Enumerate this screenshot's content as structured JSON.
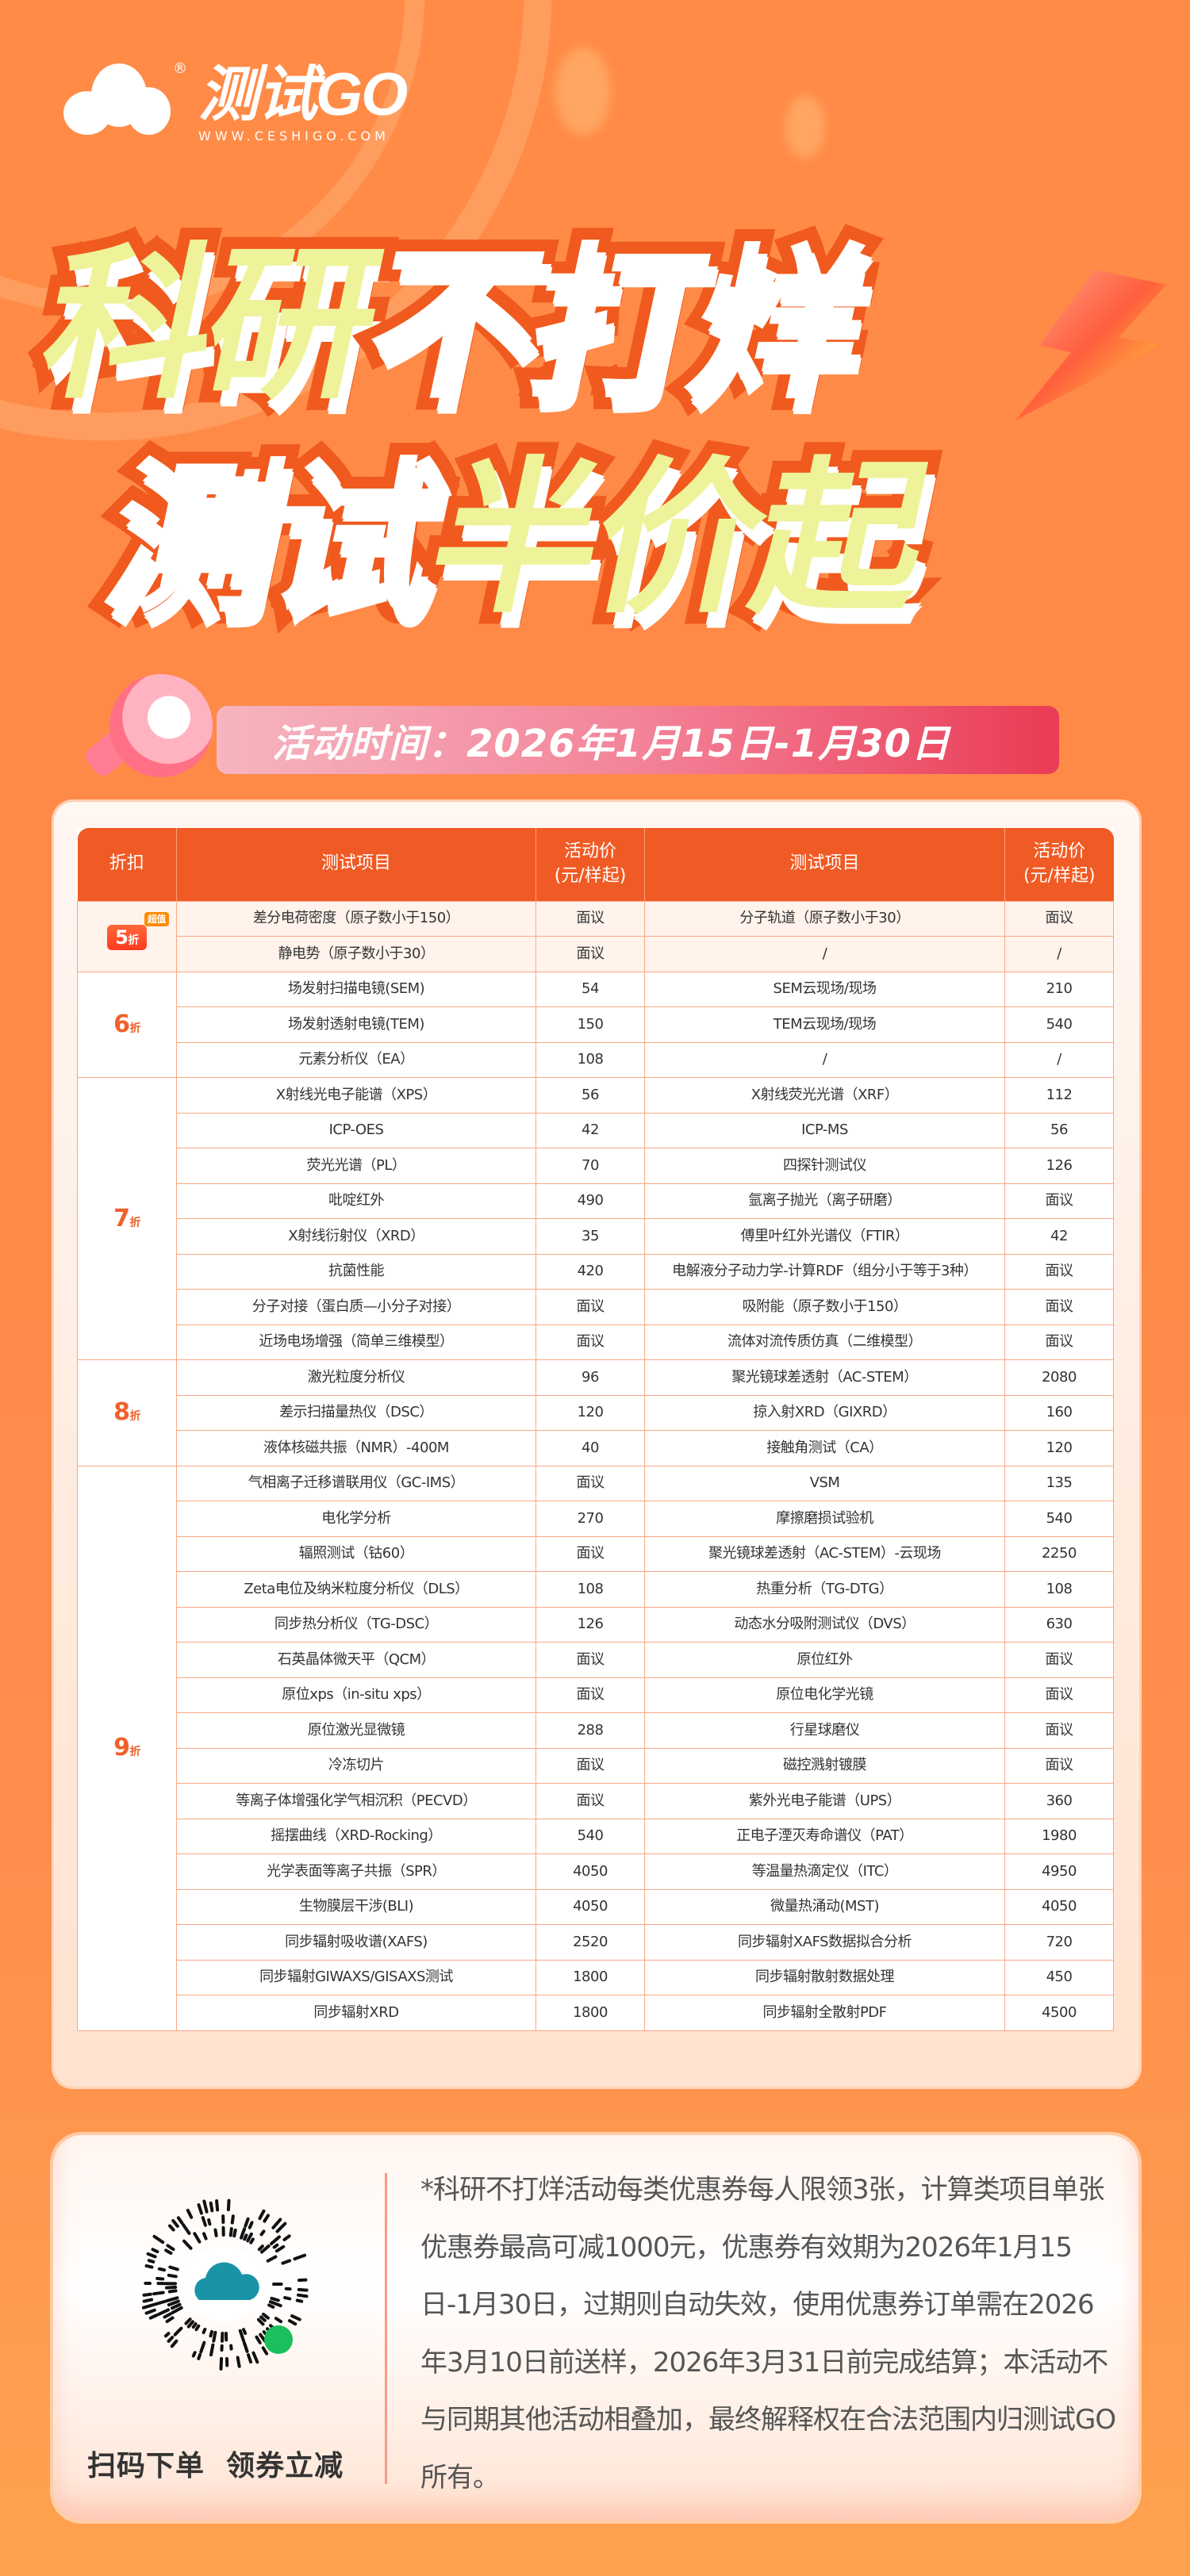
{
  "brand": {
    "name": "测试GO",
    "url": "WWW.CESHIGO.COM",
    "registered": "®"
  },
  "headline": {
    "line1_a": "科研",
    "line1_b": "不打烊",
    "line2_a": "测试",
    "line2_b": "半价起"
  },
  "activity_time": "活动时间：2026年1月15日-1月30日",
  "colors": {
    "header": "#F05A24",
    "discount": "#F0602A",
    "highlight_text": "#EEF39A",
    "background": "#FF8B47"
  },
  "table": {
    "headers": [
      "折扣",
      "测试项目",
      "活动价\n(元/样起)",
      "测试项目",
      "活动价\n(元/样起)"
    ],
    "groups": [
      {
        "discount": "5",
        "unit": "折",
        "badge": "超值",
        "rows": [
          [
            "差分电荷密度（原子数小于150）",
            "面议",
            "分子轨道（原子数小于30）",
            "面议"
          ],
          [
            "静电势（原子数小于30）",
            "面议",
            "/",
            "/"
          ]
        ]
      },
      {
        "discount": "6",
        "unit": "折",
        "rows": [
          [
            "场发射扫描电镜(SEM)",
            "54",
            "SEM云现场/现场",
            "210"
          ],
          [
            "场发射透射电镜(TEM)",
            "150",
            "TEM云现场/现场",
            "540"
          ],
          [
            "元素分析仪（EA）",
            "108",
            "/",
            "/"
          ]
        ]
      },
      {
        "discount": "7",
        "unit": "折",
        "rows": [
          [
            "X射线光电子能谱（XPS）",
            "56",
            "X射线荧光光谱（XRF）",
            "112"
          ],
          [
            "ICP-OES",
            "42",
            "ICP-MS",
            "56"
          ],
          [
            "荧光光谱（PL）",
            "70",
            "四探针测试仪",
            "126"
          ],
          [
            "吡啶红外",
            "490",
            "氩离子抛光（离子研磨）",
            "面议"
          ],
          [
            "X射线衍射仪（XRD）",
            "35",
            "傅里叶红外光谱仪（FTIR）",
            "42"
          ],
          [
            "抗菌性能",
            "420",
            "电解液分子动力学-计算RDF（组分小于等于3种）",
            "面议"
          ],
          [
            "分子对接（蛋白质—小分子对接）",
            "面议",
            "吸附能（原子数小于150）",
            "面议"
          ],
          [
            "近场电场增强（简单三维模型）",
            "面议",
            "流体对流传质仿真（二维模型）",
            "面议"
          ]
        ]
      },
      {
        "discount": "8",
        "unit": "折",
        "rows": [
          [
            "激光粒度分析仪",
            "96",
            "聚光镜球差透射（AC-STEM）",
            "2080"
          ],
          [
            "差示扫描量热仪（DSC）",
            "120",
            "掠入射XRD（GIXRD）",
            "160"
          ],
          [
            "液体核磁共振（NMR）-400M",
            "40",
            "接触角测试（CA）",
            "120"
          ]
        ]
      },
      {
        "discount": "9",
        "unit": "折",
        "rows": [
          [
            "气相离子迁移谱联用仪（GC-IMS）",
            "面议",
            "VSM",
            "135"
          ],
          [
            "电化学分析",
            "270",
            "摩擦磨损试验机",
            "540"
          ],
          [
            "辐照测试（钴60）",
            "面议",
            "聚光镜球差透射（AC-STEM）-云现场",
            "2250"
          ],
          [
            "Zeta电位及纳米粒度分析仪（DLS）",
            "108",
            "热重分析（TG-DTG）",
            "108"
          ],
          [
            "同步热分析仪（TG-DSC）",
            "126",
            "动态水分吸附测试仪（DVS）",
            "630"
          ],
          [
            "石英晶体微天平（QCM）",
            "面议",
            "原位红外",
            "面议"
          ],
          [
            "原位xps（in-situ xps）",
            "面议",
            "原位电化学光镜",
            "面议"
          ],
          [
            "原位激光显微镜",
            "288",
            "行星球磨仪",
            "面议"
          ],
          [
            "冷冻切片",
            "面议",
            "磁控溅射镀膜",
            "面议"
          ],
          [
            "等离子体增强化学气相沉积（PECVD）",
            "面议",
            "紫外光电子能谱（UPS）",
            "360"
          ],
          [
            "摇摆曲线（XRD-Rocking）",
            "540",
            "正电子湮灭寿命谱仪（PAT）",
            "1980"
          ],
          [
            "光学表面等离子共振（SPR）",
            "4050",
            "等温量热滴定仪（ITC）",
            "4950"
          ],
          [
            "生物膜层干涉(BLI)",
            "4050",
            "微量热涌动(MST)",
            "4050"
          ],
          [
            "同步辐射吸收谱(XAFS)",
            "2520",
            "同步辐射XAFS数据拟合分析",
            "720"
          ],
          [
            "同步辐射GIWAXS/GISAXS测试",
            "1800",
            "同步辐射散射数据处理",
            "450"
          ],
          [
            "同步辐射XRD",
            "1800",
            "同步辐射全散射PDF",
            "4500"
          ]
        ]
      }
    ]
  },
  "footer": {
    "scan_label": "扫码下单  领券立减",
    "qr_icon": "wechat-mini-program-qr",
    "note": "*科研不打烊活动每类优惠券每人限领3张，计算类项目单张优惠券最高可减1000元，优惠券有效期为2026年1月15日-1月30日，过期则自动失效，使用优惠券订单需在2026年3月10日前送样，2026年3月31日前完成结算；本活动不与同期其他活动相叠加，最终解释权在合法范围内归测试GO所有。"
  }
}
